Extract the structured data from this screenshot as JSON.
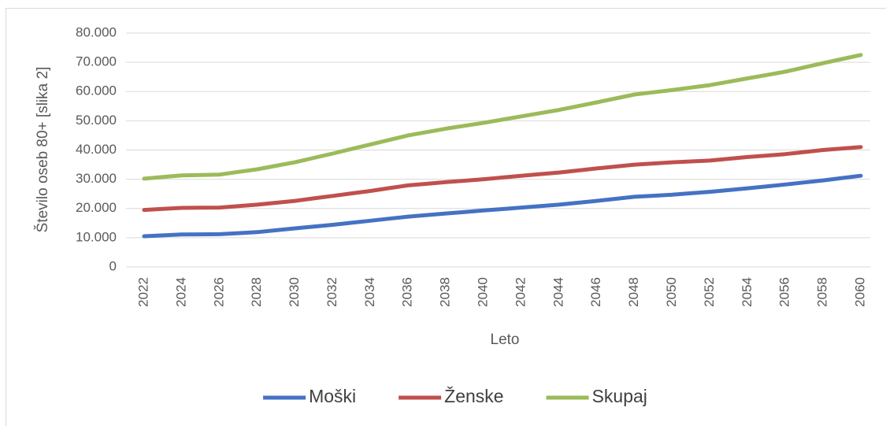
{
  "chart_data": {
    "type": "line",
    "y_label": "Število oseb 80+ [slika 2]",
    "x_label": "Leto",
    "x": [
      2022,
      2023,
      2024,
      2025,
      2026,
      2027,
      2028,
      2029,
      2030,
      2031,
      2032,
      2033,
      2034,
      2035,
      2036,
      2037,
      2038,
      2039,
      2040,
      2041,
      2042,
      2043,
      2044,
      2045,
      2046,
      2047,
      2048,
      2049,
      2050,
      2051,
      2052,
      2053,
      2054,
      2055,
      2056,
      2057,
      2058,
      2059,
      2060
    ],
    "xlim": [
      2022,
      2060
    ],
    "xticks": [
      2022,
      2024,
      2026,
      2028,
      2030,
      2032,
      2034,
      2036,
      2038,
      2040,
      2042,
      2044,
      2046,
      2048,
      2050,
      2052,
      2054,
      2056,
      2058,
      2060
    ],
    "ylim": [
      0,
      80000
    ],
    "yticks": [
      0,
      {
        "value": 10000,
        "label": "10.000"
      },
      {
        "value": 20000,
        "label": "20.000"
      },
      {
        "value": 30000,
        "label": "30.000"
      },
      {
        "value": 40000,
        "label": "40.000"
      },
      {
        "value": 50000,
        "label": "50.000"
      },
      {
        "value": 60000,
        "label": "60.000"
      },
      {
        "value": 70000,
        "label": "70.000"
      },
      {
        "value": 80000,
        "label": "80.000"
      }
    ],
    "grid": true,
    "legend": "bottom",
    "series": [
      {
        "name": "Moški",
        "color": "#4472c4",
        "values": [
          10500,
          10800,
          11100,
          11150,
          11200,
          11550,
          11900,
          12550,
          13200,
          13800,
          14400,
          15100,
          15800,
          16500,
          17200,
          17750,
          18300,
          18800,
          19300,
          19800,
          20300,
          20800,
          21300,
          21950,
          22600,
          23300,
          24000,
          24350,
          24700,
          25200,
          25700,
          26300,
          26900,
          27550,
          28200,
          28900,
          29600,
          30400,
          31200
        ]
      },
      {
        "name": "Ženske",
        "color": "#c0504d",
        "values": [
          19500,
          19850,
          20200,
          20250,
          20300,
          20800,
          21300,
          21950,
          22600,
          23450,
          24300,
          25150,
          26000,
          26950,
          27900,
          28450,
          29000,
          29500,
          30000,
          30600,
          31200,
          31750,
          32300,
          33000,
          33700,
          34350,
          35000,
          35400,
          35800,
          36100,
          36400,
          37000,
          37600,
          38100,
          38600,
          39300,
          40000,
          40500,
          41000
        ]
      },
      {
        "name": "Skupaj",
        "color": "#9bbb59",
        "values": [
          30200,
          30750,
          31300,
          31450,
          31600,
          32500,
          33400,
          34600,
          35800,
          37300,
          38800,
          40350,
          41900,
          43450,
          45000,
          46150,
          47300,
          48300,
          49300,
          50400,
          51500,
          52600,
          53700,
          55000,
          56300,
          57650,
          59000,
          59750,
          60500,
          61350,
          62200,
          63350,
          64500,
          65650,
          66800,
          68250,
          69700,
          71100,
          72500
        ]
      }
    ]
  }
}
